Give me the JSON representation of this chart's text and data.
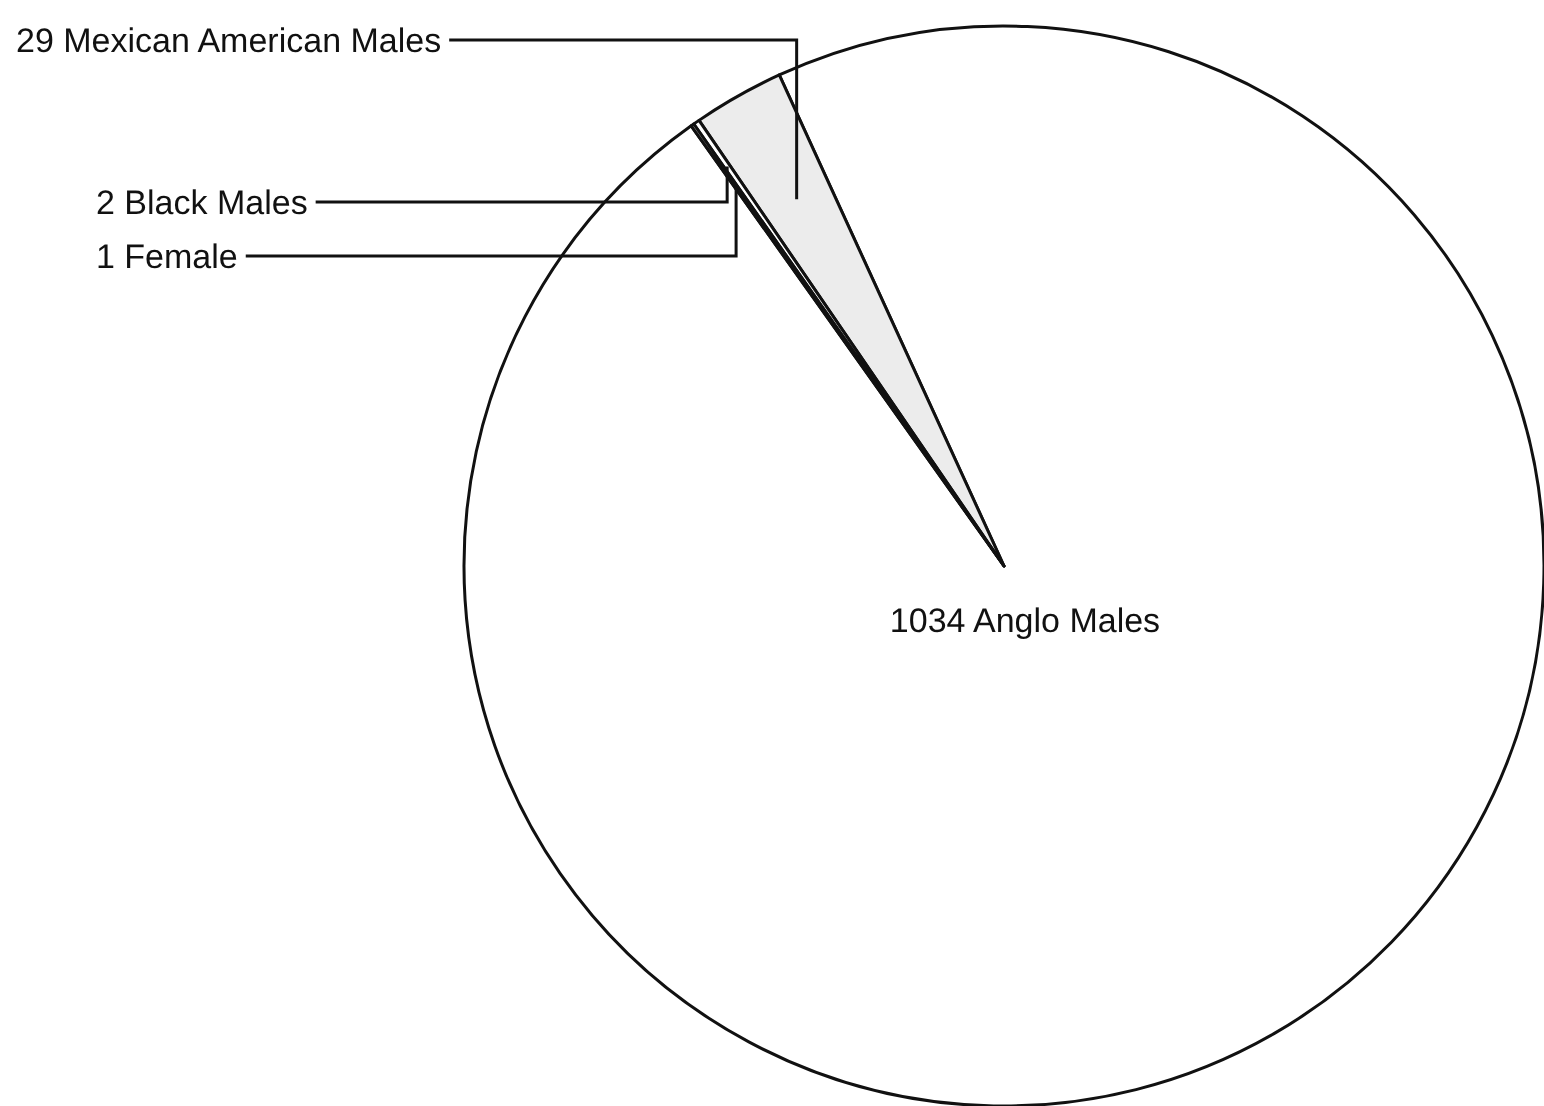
{
  "chart_data": {
    "type": "pie",
    "categories": [
      "1034 Anglo Males",
      "29 Mexican American Males",
      "2 Black Males",
      "1 Female"
    ],
    "values": [
      1034,
      29,
      2,
      1
    ],
    "colors": [
      "#ffffff",
      "#ececec",
      "#ffffff",
      "#ffffff"
    ]
  }
}
